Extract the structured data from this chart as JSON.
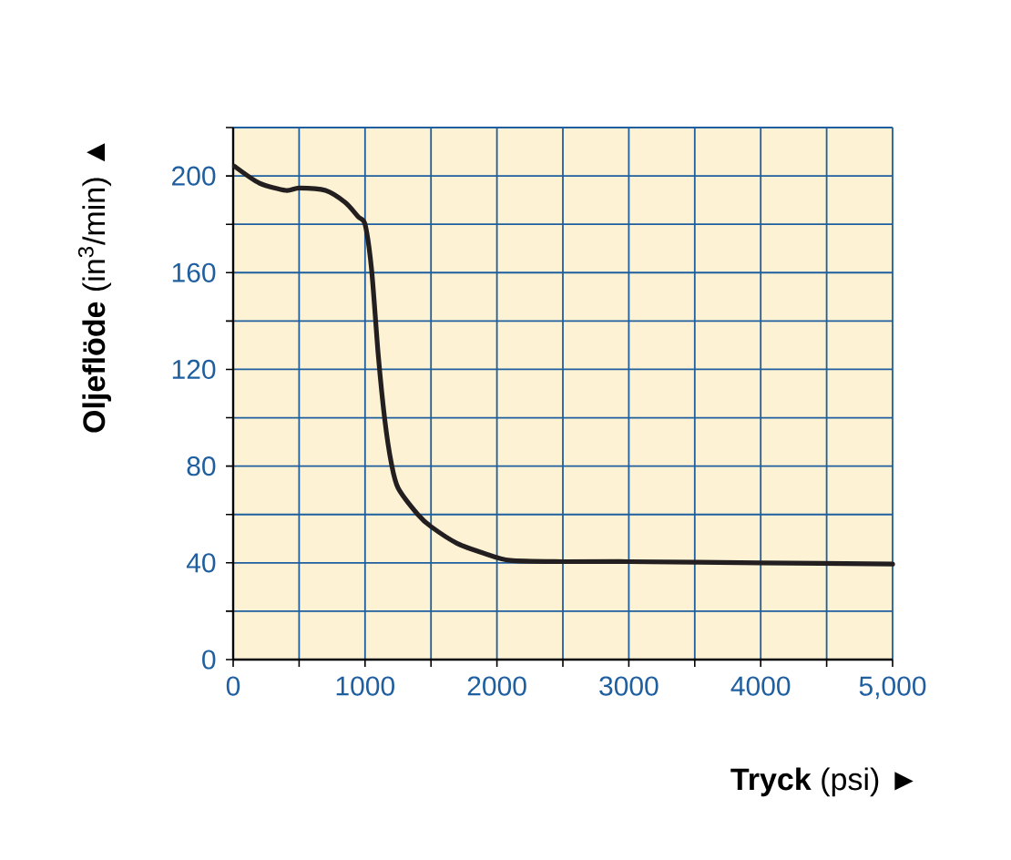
{
  "chart_data": {
    "type": "line",
    "xlabel": "**Tryck** (psi)  ►",
    "ylabel": "**Oljeflöde** (in$^{3}$/min)  ▲",
    "x": [
      10,
      200,
      400,
      500,
      700,
      850,
      950,
      1000,
      1050,
      1100,
      1150,
      1200,
      1250,
      1400,
      1500,
      1700,
      1900,
      2100,
      2500,
      3000,
      4000,
      5000
    ],
    "series": [
      {
        "color": "#231f20",
        "values": [
          204,
          197,
          194,
          195,
          194,
          189,
          183,
          180,
          161,
          126,
          99,
          81,
          71,
          60,
          55,
          48,
          44,
          41,
          40.5,
          40.5,
          40,
          39.5
        ]
      }
    ],
    "xlim": [
      0,
      5000
    ],
    "ylim": [
      0,
      220
    ],
    "xticks": [
      0,
      {
        "value": 500,
        "label": null
      },
      1000,
      {
        "value": 1500,
        "label": null
      },
      2000,
      {
        "value": 2500,
        "label": null
      },
      3000,
      {
        "value": 3500,
        "label": null
      },
      4000,
      {
        "value": 4500,
        "label": null
      },
      {
        "value": 5000,
        "label": "5,000"
      }
    ],
    "yticks": [
      0,
      {
        "value": 20,
        "label": null
      },
      40,
      {
        "value": 60,
        "label": null
      },
      80,
      {
        "value": 100,
        "label": null
      },
      120,
      {
        "value": 140,
        "label": null
      },
      160,
      {
        "value": 180,
        "label": null
      },
      200,
      {
        "value": 220,
        "label": null
      }
    ],
    "grid": true,
    "marker": "none",
    "line_style": "solid"
  }
}
